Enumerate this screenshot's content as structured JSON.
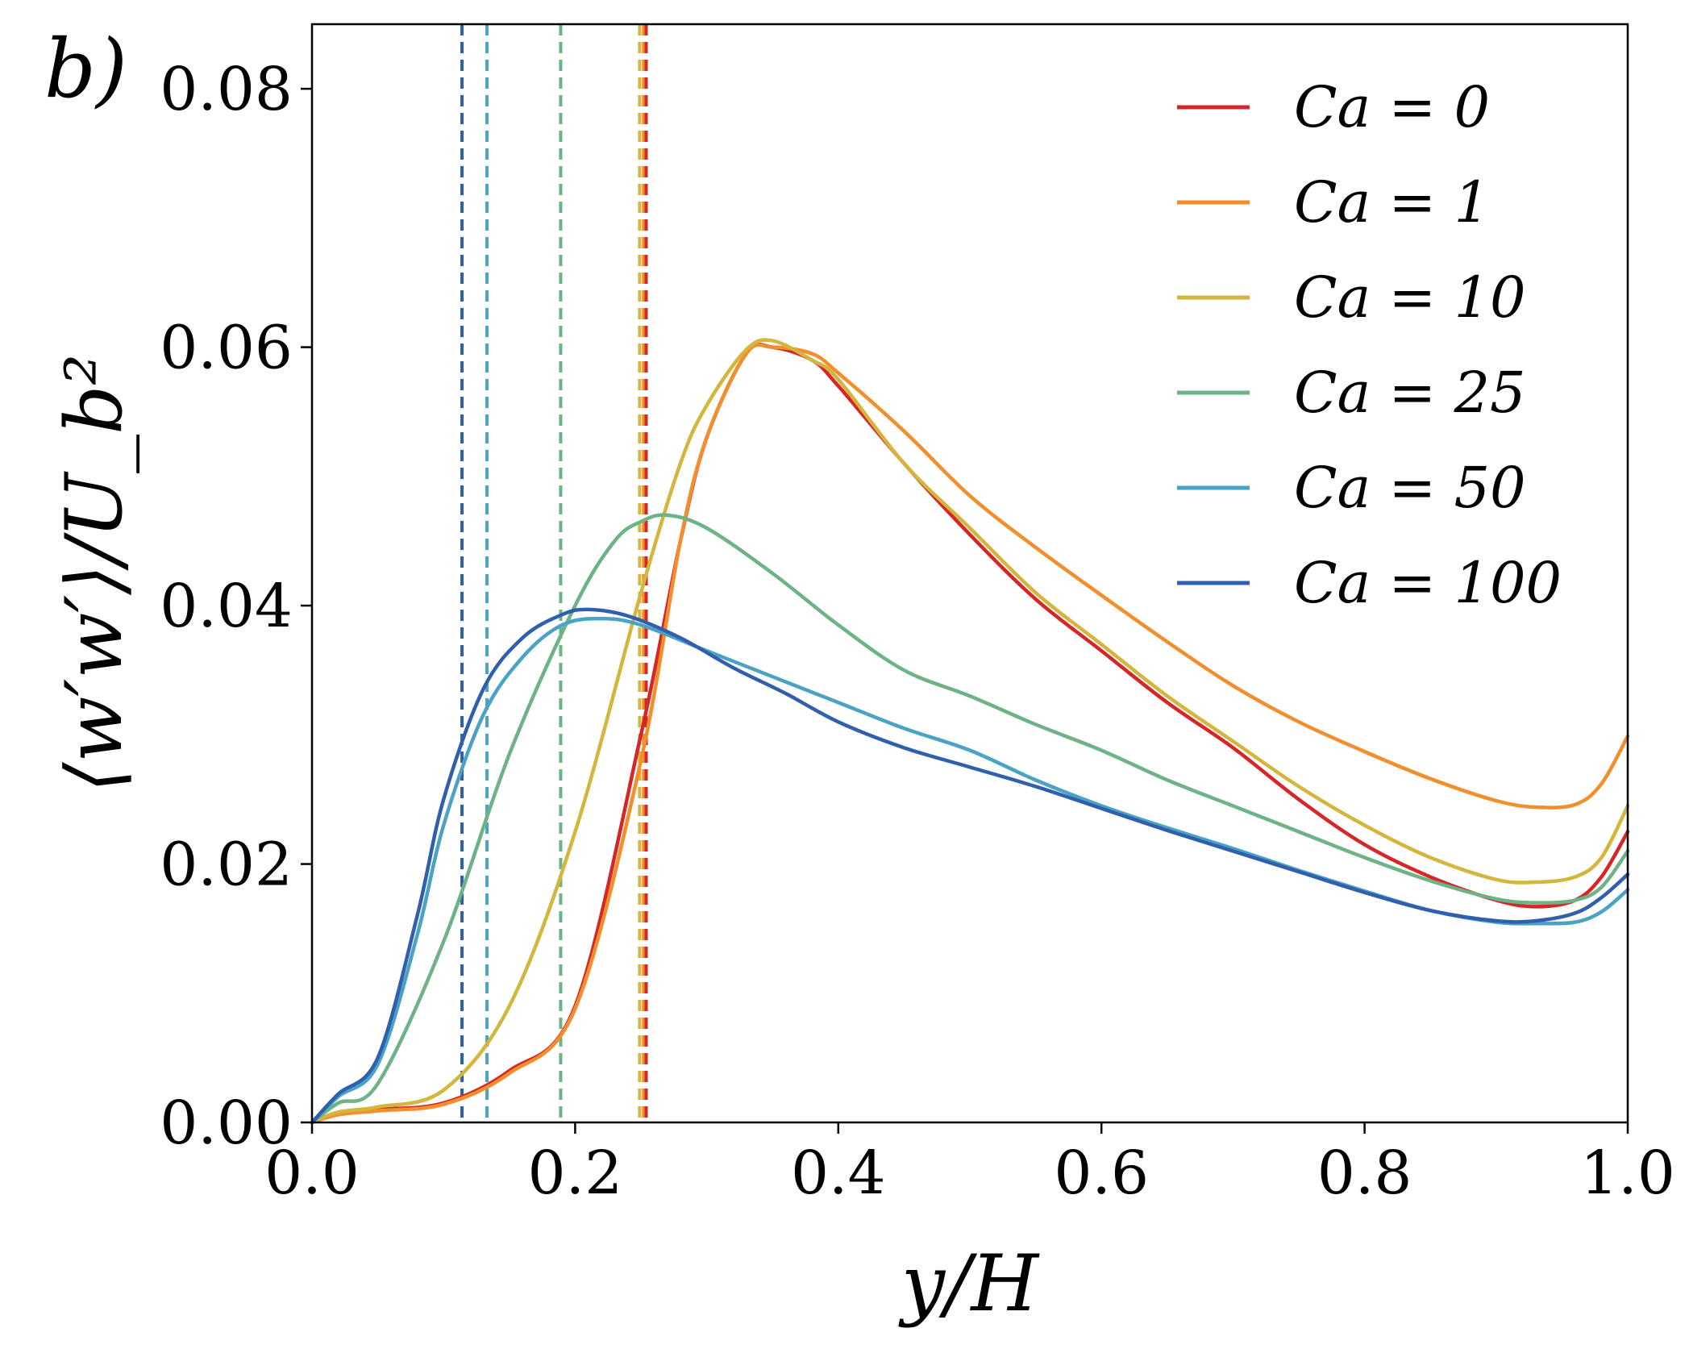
{
  "panel_label": "b)",
  "chart_data": {
    "type": "line",
    "xlabel": "y/H",
    "ylabel": "⟨w′w′⟩/U_b²",
    "xlim": [
      0.0,
      1.0
    ],
    "ylim": [
      0.0,
      0.085
    ],
    "x_ticks": [
      0.0,
      0.2,
      0.4,
      0.6,
      0.8,
      1.0
    ],
    "x_tick_labels": [
      "0.0",
      "0.2",
      "0.4",
      "0.6",
      "0.8",
      "1.0"
    ],
    "y_ticks": [
      0.0,
      0.02,
      0.04,
      0.06,
      0.08
    ],
    "y_tick_labels": [
      "0.00",
      "0.02",
      "0.04",
      "0.06",
      "0.08"
    ],
    "grid": false,
    "legend_position": "top-right",
    "series": [
      {
        "name": "Ca = 0",
        "color": "#d62728",
        "x": [
          0.0,
          0.02,
          0.05,
          0.1,
          0.15,
          0.2,
          0.25,
          0.28,
          0.3,
          0.33,
          0.35,
          0.38,
          0.4,
          0.45,
          0.5,
          0.55,
          0.6,
          0.65,
          0.7,
          0.75,
          0.8,
          0.85,
          0.9,
          0.93,
          0.96,
          0.98,
          1.0
        ],
        "y": [
          0.0,
          0.0007,
          0.001,
          0.0015,
          0.004,
          0.009,
          0.03,
          0.045,
          0.053,
          0.0595,
          0.06,
          0.059,
          0.057,
          0.051,
          0.0455,
          0.0405,
          0.0365,
          0.0325,
          0.029,
          0.025,
          0.0215,
          0.019,
          0.0172,
          0.0167,
          0.0172,
          0.019,
          0.0225
        ]
      },
      {
        "name": "Ca = 1",
        "color": "#f28e2b",
        "x": [
          0.0,
          0.02,
          0.05,
          0.1,
          0.15,
          0.2,
          0.25,
          0.28,
          0.3,
          0.33,
          0.35,
          0.38,
          0.4,
          0.45,
          0.5,
          0.55,
          0.6,
          0.65,
          0.7,
          0.75,
          0.8,
          0.85,
          0.9,
          0.93,
          0.96,
          0.98,
          1.0
        ],
        "y": [
          0.0,
          0.0006,
          0.0009,
          0.0014,
          0.0038,
          0.0088,
          0.028,
          0.045,
          0.053,
          0.0595,
          0.06,
          0.0595,
          0.058,
          0.0535,
          0.0485,
          0.0445,
          0.0408,
          0.0372,
          0.0338,
          0.031,
          0.0287,
          0.0266,
          0.0249,
          0.0244,
          0.0246,
          0.0262,
          0.0299
        ]
      },
      {
        "name": "Ca = 10",
        "color": "#d4b63c",
        "x": [
          0.0,
          0.02,
          0.05,
          0.1,
          0.15,
          0.2,
          0.25,
          0.28,
          0.3,
          0.33,
          0.35,
          0.38,
          0.4,
          0.45,
          0.5,
          0.55,
          0.6,
          0.65,
          0.7,
          0.75,
          0.8,
          0.85,
          0.9,
          0.93,
          0.96,
          0.98,
          1.0
        ],
        "y": [
          0.0,
          0.0008,
          0.0012,
          0.0025,
          0.009,
          0.0225,
          0.041,
          0.051,
          0.0555,
          0.0598,
          0.0605,
          0.059,
          0.0575,
          0.051,
          0.046,
          0.041,
          0.037,
          0.033,
          0.0295,
          0.026,
          0.023,
          0.0205,
          0.0188,
          0.0186,
          0.019,
          0.0205,
          0.0245
        ]
      },
      {
        "name": "Ca = 25",
        "color": "#6db386",
        "x": [
          0.0,
          0.02,
          0.05,
          0.1,
          0.15,
          0.2,
          0.23,
          0.25,
          0.27,
          0.3,
          0.35,
          0.4,
          0.45,
          0.5,
          0.55,
          0.6,
          0.65,
          0.7,
          0.75,
          0.8,
          0.85,
          0.9,
          0.93,
          0.96,
          0.98,
          1.0
        ],
        "y": [
          0.0,
          0.0015,
          0.003,
          0.014,
          0.0285,
          0.04,
          0.045,
          0.0465,
          0.047,
          0.046,
          0.0425,
          0.0385,
          0.035,
          0.033,
          0.0308,
          0.0288,
          0.0265,
          0.0245,
          0.0225,
          0.0205,
          0.0187,
          0.0173,
          0.017,
          0.0172,
          0.0182,
          0.021
        ]
      },
      {
        "name": "Ca = 50",
        "color": "#4aa3c4",
        "x": [
          0.0,
          0.02,
          0.05,
          0.08,
          0.1,
          0.13,
          0.16,
          0.19,
          0.22,
          0.25,
          0.3,
          0.35,
          0.4,
          0.45,
          0.5,
          0.55,
          0.6,
          0.65,
          0.7,
          0.75,
          0.8,
          0.85,
          0.9,
          0.93,
          0.96,
          0.98,
          1.0
        ],
        "y": [
          0.0,
          0.002,
          0.0045,
          0.0145,
          0.023,
          0.0315,
          0.036,
          0.0385,
          0.039,
          0.0385,
          0.0365,
          0.0345,
          0.0325,
          0.0305,
          0.0288,
          0.0265,
          0.0245,
          0.0228,
          0.0212,
          0.0195,
          0.0179,
          0.0164,
          0.0155,
          0.0154,
          0.0155,
          0.0163,
          0.018
        ]
      },
      {
        "name": "Ca = 100",
        "color": "#2f5fad",
        "x": [
          0.0,
          0.02,
          0.05,
          0.08,
          0.1,
          0.13,
          0.16,
          0.19,
          0.21,
          0.24,
          0.28,
          0.32,
          0.36,
          0.4,
          0.45,
          0.5,
          0.55,
          0.6,
          0.65,
          0.7,
          0.75,
          0.8,
          0.85,
          0.9,
          0.93,
          0.96,
          0.98,
          1.0
        ],
        "y": [
          0.0,
          0.0022,
          0.005,
          0.016,
          0.025,
          0.0335,
          0.0375,
          0.0393,
          0.0397,
          0.0392,
          0.0375,
          0.0352,
          0.0332,
          0.031,
          0.029,
          0.0275,
          0.026,
          0.0243,
          0.0226,
          0.021,
          0.0194,
          0.0178,
          0.0164,
          0.0156,
          0.0156,
          0.0162,
          0.0174,
          0.0192
        ]
      }
    ],
    "vertical_lines": [
      {
        "x": 0.114,
        "color": "#2f5fad",
        "style": "dashed"
      },
      {
        "x": 0.133,
        "color": "#4aa3c4",
        "style": "dashed"
      },
      {
        "x": 0.189,
        "color": "#6db386",
        "style": "dashed"
      },
      {
        "x": 0.249,
        "color": "#d4b63c",
        "style": "dashed"
      },
      {
        "x": 0.252,
        "color": "#f28e2b",
        "style": "dashed"
      },
      {
        "x": 0.254,
        "color": "#d62728",
        "style": "dashed"
      }
    ]
  }
}
